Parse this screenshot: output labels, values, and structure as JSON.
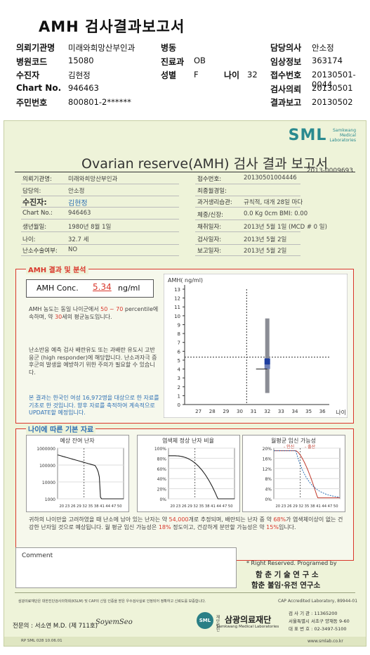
{
  "header": {
    "title": "AMH 검사결과보고서",
    "rows": [
      [
        {
          "l": "의뢰기관명",
          "v": "미래와희망산부인과"
        },
        {
          "l": "병동",
          "v": ""
        },
        {
          "l": "담당의사",
          "v": "안소정"
        }
      ],
      [
        {
          "l": "병원코드",
          "v": "15080"
        },
        {
          "l": "진료과",
          "v": "OB"
        },
        {
          "l": "임상정보",
          "v": "363174"
        }
      ],
      [
        {
          "l": "수진자",
          "v": "김현정"
        },
        {
          "l": "성별",
          "v": "F"
        },
        {
          "l": "접수번호",
          "v": "20130501-0044"
        }
      ],
      [
        {
          "l": "Chart No.",
          "v": "946463"
        },
        {
          "l": "",
          "v": ""
        },
        {
          "l": "검사의뢰",
          "v": "20130501"
        }
      ],
      [
        {
          "l": "주민번호",
          "v": "800801-2******"
        },
        {
          "l": "",
          "v": ""
        },
        {
          "l": "결과보고",
          "v": "20130502"
        }
      ]
    ],
    "age_label": "나이",
    "age_value": "32"
  },
  "report": {
    "logo": "SML",
    "logo_sub1": "Samkwang",
    "logo_sub2": "Medical",
    "logo_sub3": "Laboratories",
    "title": "Ovarian reserve(AMH) 검사 결과 보고서",
    "doc_no": "2013-0009693",
    "left_info": [
      {
        "l": "의뢰기관명:",
        "v": "미래와희망산부인과"
      },
      {
        "l": "담당의:",
        "v": "안소정"
      },
      {
        "l": "수진자:",
        "v": "김현정"
      },
      {
        "l": "Chart No.:",
        "v": "946463"
      },
      {
        "l": "생년월일:",
        "v": "1980년 8월 1일"
      },
      {
        "l": "나이:",
        "v": "32.7 세"
      },
      {
        "l": "난소수술여부:",
        "v": "NO"
      }
    ],
    "right_info": [
      {
        "l": "접수번호:",
        "v": "20130501004446"
      },
      {
        "l": "최종월경일:",
        "v": ""
      },
      {
        "l": "과거생리습관:",
        "v": "규칙적, 대개  28일 마다"
      },
      {
        "l": "체중/신장:",
        "v": "0.0 Kg      0cm   BMI:  0.00"
      },
      {
        "l": "채취일자:",
        "v": "2013년 5월 1일    (MCD # 0 일)"
      },
      {
        "l": "검사일자:",
        "v": "2013년 5월 2일"
      },
      {
        "l": "보고일자:",
        "v": "2013년 5월 2일"
      }
    ],
    "analysis": {
      "section": "AMH 결과 및 분석",
      "conc_label": "AMH Conc.",
      "conc_value": "5.34",
      "conc_unit": "ng/ml",
      "p1a": "AMH 농도는 동일 나이군에서",
      "p1b": "50 ~ 70",
      "p1c": "percentile에 속하며, 약",
      "p1d": "30",
      "p1e": "세의 평균농도입니다.",
      "p2": "난소반응 예측 검사 배란유도 또는 과배란 유도시 고반응군 (high responder)에 해당합니다. 난소과자극 증후군의 발생을 예방하기 위한 주의가 필요할 수 있습니다.",
      "p3": "본 결과는 한국인 여성 16,972명을 대상으로 한 자료를 기초로 한 것입니다. 향후 자료를 축적하여 계속적으로 UPDATE할 예정입니다."
    },
    "chart": {
      "ylabel": "AMH( ng/ml)",
      "xlabel": "나이"
    },
    "age_section": {
      "title": "나이에 따른 기본 자료",
      "c1": "예상 잔여 난자",
      "c2": "염색체 정상 난자 비율",
      "c3": "월평균 임신 가능성",
      "c3_legend1": "- 인신",
      "c3_legend2": "- 출산",
      "c1_y": [
        "1000000",
        "100000",
        "10000",
        "1000"
      ],
      "c2_y": [
        "100%",
        "80%",
        "60%",
        "40%",
        "20%",
        "0%"
      ],
      "c3_y": [
        "20%",
        "16%",
        "12%",
        "8%",
        "4%",
        "0%"
      ],
      "c1_x": "20 23 26 29 32 35 38 41 44 47 50",
      "c2_x": "20 23 26 29 32 35 38 41 44 47 50",
      "c3_x": "20 23 26 29 32 35 38 41 44 47 50",
      "bottom_a": "귀하의 나이만을 고려하였을 때 난소에 남아 있는 난자는 약",
      "bottom_b": "54,000",
      "bottom_c": "개로 추정되며, 배란되는 난자 중 약",
      "bottom_d": "68%",
      "bottom_e": "가 염색체이상이 없는 건강한 난자일 것으로 예상됩니다. 월 평균 임신 가능성은",
      "bottom_f": "18%",
      "bottom_g": "정도이고, 건강하게 분만할 가능성은 약",
      "bottom_h": "15%",
      "bottom_i": "입니다."
    },
    "comment_label": "Comment",
    "copyright": "* Right Reserved. Programed by",
    "lab1": "함 춘 기 술 연 구 소",
    "lab2": "함춘 불임·유전 연구소",
    "footnote_left": "삼광의료재단은 대한진단검사의학회(KSLM) 및 CAP의 신임 인증을 받은 우수검사실로 인정되어 정확하고 신뢰도를 보증합니다.",
    "footnote_right": "CAP Accredited Laboratory, 89944-01",
    "doctor": "전문의 : 서소연 M.D. (제 711호)",
    "signature": "SoyemSeo",
    "foundation_small": "재단법인",
    "foundation": "삼광의료재단",
    "foundation_en": "Samkwang Medical Laboratories",
    "contact1": "검 사 기 관 : 11365200",
    "contact2": "서울특별시 서초구 양재동 9-60",
    "contact3": "대 표 번 호 : 02-3497-5100",
    "form_code": "RP  SML  028  10.06.01",
    "website": "www.smlab.co.kr"
  },
  "chart_data": {
    "type": "box",
    "title": "",
    "ylabel": "AMH( ng/ml)",
    "xlabel": "나이",
    "x": [
      27,
      28,
      29,
      30,
      31,
      32,
      33,
      34,
      35,
      36
    ],
    "yticks": [
      0,
      1,
      2,
      3,
      4,
      5,
      6,
      7,
      8,
      9,
      10,
      11,
      12,
      13
    ],
    "ylim": [
      0,
      13
    ],
    "xlim": [
      26,
      36.5
    ],
    "age_marker": 30.5,
    "value_marker": 5.34,
    "box": {
      "age": 32,
      "whisker_low": 1.3,
      "q1": 4.0,
      "median": 4.5,
      "q3": 5.2,
      "whisker_high": 9.7
    }
  }
}
